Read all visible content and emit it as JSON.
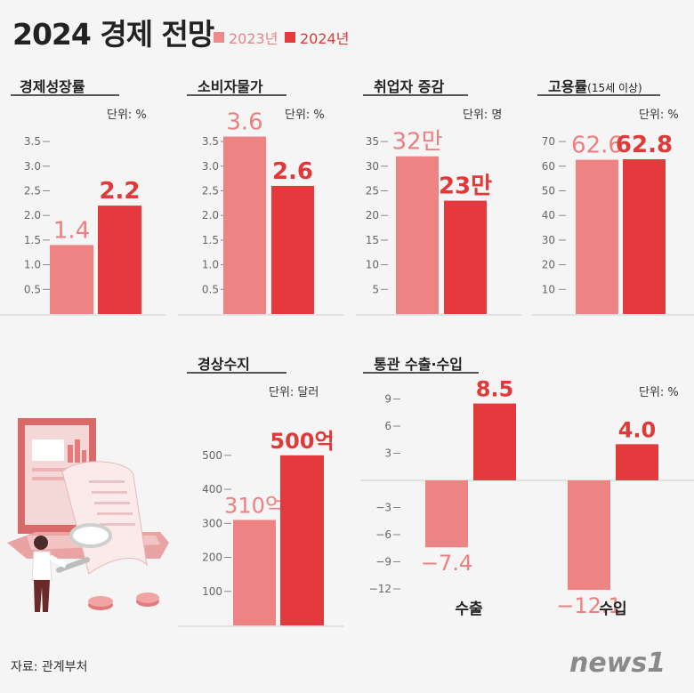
{
  "header": {
    "title": "2024 경제 전망",
    "legend": [
      {
        "label": "2023년",
        "color": "#ef8a8a"
      },
      {
        "label": "2024년",
        "color": "#e43b3b"
      }
    ]
  },
  "colors": {
    "y2023": "#ee8383",
    "y2024": "#e53a3d"
  },
  "chart_data": [
    {
      "id": "gdp",
      "type": "bar",
      "title": "경제성장률",
      "unit": "단위: %",
      "categories": [
        "2023년",
        "2024년"
      ],
      "values": [
        1.4,
        2.2
      ],
      "value_labels": [
        "1.4",
        "2.2"
      ],
      "ylim": [
        0,
        3.7
      ],
      "ticks": [
        0.5,
        1.0,
        1.5,
        2.0,
        2.5,
        3.0,
        3.5
      ],
      "tick_labels": [
        "0.5",
        "1.0",
        "1.5",
        "2.0",
        "2.5",
        "3.0",
        "3.5"
      ]
    },
    {
      "id": "cpi",
      "type": "bar",
      "title": "소비자물가",
      "unit": "단위: %",
      "categories": [
        "2023년",
        "2024년"
      ],
      "values": [
        3.6,
        2.6
      ],
      "value_labels": [
        "3.6",
        "2.6"
      ],
      "ylim": [
        0,
        3.7
      ],
      "ticks": [
        0.5,
        1.0,
        1.5,
        2.0,
        2.5,
        3.0,
        3.5
      ],
      "tick_labels": [
        "0.5",
        "1.0",
        "1.5",
        "2.0",
        "2.5",
        "3.0",
        "3.5"
      ]
    },
    {
      "id": "jobs",
      "type": "bar",
      "title": "취업자 증감",
      "unit": "단위: 명",
      "categories": [
        "2023년",
        "2024년"
      ],
      "values": [
        32,
        23
      ],
      "value_labels": [
        "32만",
        "23만"
      ],
      "ylim": [
        0,
        37
      ],
      "ticks": [
        5,
        10,
        15,
        20,
        25,
        30,
        35
      ],
      "tick_labels": [
        "5",
        "10",
        "15",
        "20",
        "25",
        "30",
        "35"
      ]
    },
    {
      "id": "emp",
      "type": "bar",
      "title": "고용률",
      "title_suffix": "(15세 이상)",
      "unit": "단위: %",
      "categories": [
        "2023년",
        "2024년"
      ],
      "values": [
        62.6,
        62.8
      ],
      "value_labels": [
        "62.6",
        "62.8"
      ],
      "ylim": [
        0,
        74
      ],
      "ticks": [
        10,
        20,
        30,
        40,
        50,
        60,
        70
      ],
      "tick_labels": [
        "10",
        "20",
        "30",
        "40",
        "50",
        "60",
        "70"
      ]
    },
    {
      "id": "current",
      "type": "bar",
      "title": "경상수지",
      "unit": "단위: 달러",
      "categories": [
        "2023년",
        "2024년"
      ],
      "values": [
        310,
        500
      ],
      "value_labels": [
        "310억",
        "500억"
      ],
      "ylim": [
        0,
        510
      ],
      "ticks": [
        100,
        200,
        300,
        400,
        500
      ],
      "tick_labels": [
        "100",
        "200",
        "300",
        "400",
        "500"
      ]
    },
    {
      "id": "trade",
      "type": "bar",
      "title": "통관 수출·수입",
      "unit": "단위: %",
      "categories": [
        "수출",
        "수입"
      ],
      "series": [
        {
          "name": "2023년",
          "values": [
            -7.4,
            -12.1
          ],
          "value_labels": [
            "−7.4",
            "−12.1"
          ]
        },
        {
          "name": "2024년",
          "values": [
            8.5,
            4.0
          ],
          "value_labels": [
            "8.5",
            "4.0"
          ]
        }
      ],
      "ylim": [
        -13,
        11
      ],
      "ticks": [
        -12,
        -9,
        -6,
        -3,
        3,
        6,
        9
      ],
      "tick_labels": [
        "−12",
        "−9",
        "−6",
        "−3",
        "3",
        "6",
        "9"
      ]
    }
  ],
  "footer": {
    "source": "자료: 관계부처",
    "logo": "news1"
  }
}
